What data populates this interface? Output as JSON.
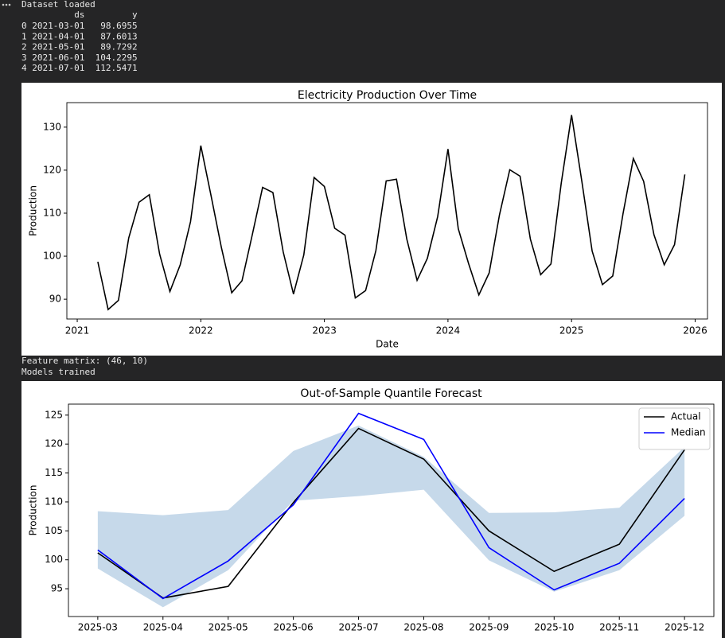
{
  "log_1": "Dataset loaded",
  "table": {
    "columns": [
      "ds",
      "y"
    ],
    "rows": [
      [
        0,
        "2021-03-01",
        98.6955
      ],
      [
        1,
        "2021-04-01",
        87.6013
      ],
      [
        2,
        "2021-05-01",
        89.7292
      ],
      [
        3,
        "2021-06-01",
        104.2295
      ],
      [
        4,
        "2021-07-01",
        112.5471
      ]
    ]
  },
  "log_2": "Feature matrix: (46, 10)",
  "log_3": "Models trained",
  "chart_data": [
    {
      "type": "line",
      "title": "Electricity Production Over Time",
      "xlabel": "Date",
      "ylabel": "Production",
      "x": [
        "2021-03",
        "2021-04",
        "2021-05",
        "2021-06",
        "2021-07",
        "2021-08",
        "2021-09",
        "2021-10",
        "2021-11",
        "2021-12",
        "2022-01",
        "2022-02",
        "2022-03",
        "2022-04",
        "2022-05",
        "2022-06",
        "2022-07",
        "2022-08",
        "2022-09",
        "2022-10",
        "2022-11",
        "2022-12",
        "2023-01",
        "2023-02",
        "2023-03",
        "2023-04",
        "2023-05",
        "2023-06",
        "2023-07",
        "2023-08",
        "2023-09",
        "2023-10",
        "2023-11",
        "2023-12",
        "2024-01",
        "2024-02",
        "2024-03",
        "2024-04",
        "2024-05",
        "2024-06",
        "2024-07",
        "2024-08",
        "2024-09",
        "2024-10",
        "2024-11",
        "2024-12",
        "2025-01",
        "2025-02",
        "2025-03",
        "2025-04",
        "2025-05",
        "2025-06",
        "2025-07",
        "2025-08",
        "2025-09",
        "2025-10",
        "2025-11",
        "2025-12"
      ],
      "series": [
        {
          "color": "#000000",
          "values": [
            98.6955,
            87.6013,
            89.7292,
            104.2295,
            112.5471,
            114.3,
            100.5,
            91.8,
            98,
            108,
            125.7,
            114,
            102,
            91.5,
            94.3,
            105,
            116,
            114.8,
            101,
            91.2,
            100.3,
            118.3,
            116.2,
            106.5,
            104.9,
            90.3,
            92,
            101.3,
            117.5,
            117.9,
            104,
            94.4,
            99.5,
            109.2,
            124.9,
            106.4,
            98.3,
            91,
            96.1,
            109.6,
            120.1,
            118.6,
            104,
            95.7,
            98.2,
            117,
            132.8,
            117.4,
            101.2,
            93.4,
            95.4,
            109.9,
            122.7,
            117.4,
            105,
            98,
            102.7,
            119
          ]
        }
      ],
      "xlim": [
        2020.916,
        2026.1
      ],
      "xticks": [
        2021,
        2022,
        2023,
        2024,
        2025,
        2026
      ],
      "ylim": [
        85.4,
        135.7
      ],
      "yticks": [
        90,
        100,
        110,
        120,
        130
      ]
    },
    {
      "type": "line",
      "title": "Out-of-Sample Quantile Forecast",
      "ylabel": "Production",
      "categories": [
        "2025-03",
        "2025-04",
        "2025-05",
        "2025-06",
        "2025-07",
        "2025-08",
        "2025-09",
        "2025-10",
        "2025-11",
        "2025-12"
      ],
      "band": {
        "color": "#c6d9ea",
        "upper": [
          108.4,
          107.7,
          108.6,
          118.8,
          123.2,
          117.8,
          108.1,
          108.2,
          109,
          119.5
        ],
        "lower": [
          98.5,
          91.8,
          98.2,
          110.2,
          111,
          112.1,
          99.9,
          94.5,
          98.2,
          107.6
        ]
      },
      "series": [
        {
          "name": "Actual",
          "color": "#000000",
          "values": [
            101.2,
            93.4,
            95.4,
            109.9,
            122.7,
            117.4,
            105,
            98,
            102.7,
            119
          ]
        },
        {
          "name": "Median",
          "color": "#0000ff",
          "values": [
            101.7,
            93.3,
            99.8,
            109.5,
            125.3,
            120.8,
            102.1,
            94.8,
            99.4,
            110.6
          ]
        }
      ],
      "ylim": [
        90.2,
        126.9
      ],
      "yticks": [
        95,
        100,
        105,
        110,
        115,
        120,
        125
      ],
      "legend": "upper right"
    }
  ]
}
